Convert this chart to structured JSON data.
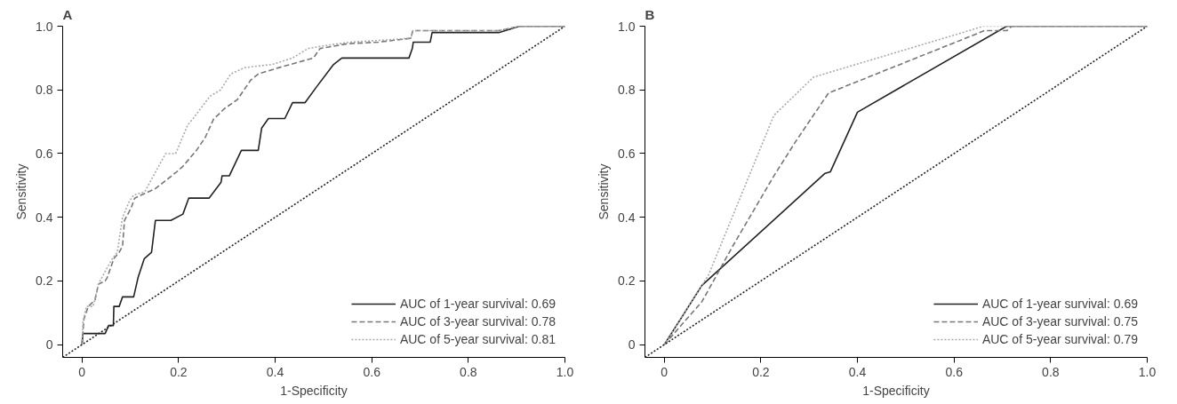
{
  "chart_data": [
    {
      "type": "line",
      "title": "A",
      "xlabel": "1-Specificity",
      "ylabel": "Sensitivity",
      "xlim": [
        -0.04,
        1.0
      ],
      "ylim": [
        -0.04,
        1.0
      ],
      "xticks": [
        0,
        0.2,
        0.4,
        0.6,
        0.8,
        {
          "value": 1.0,
          "label": "1.0"
        }
      ],
      "yticks": [
        0,
        0.2,
        0.4,
        0.6,
        0.8,
        {
          "value": 1.0,
          "label": "1.0"
        }
      ],
      "grid": false,
      "legend": "bottom right",
      "marker": "none",
      "series": [
        {
          "name": "AUC of 1-year survival: 0.69",
          "color": "#222222",
          "line_style": "solid",
          "x": [
            0,
            0.002,
            0.048,
            0.055,
            0.065,
            0.066,
            0.077,
            0.084,
            0.107,
            0.116,
            0.129,
            0.144,
            0.152,
            0.184,
            0.209,
            0.221,
            0.263,
            0.288,
            0.29,
            0.305,
            0.33,
            0.365,
            0.372,
            0.386,
            0.42,
            0.436,
            0.462,
            0.486,
            0.521,
            0.538,
            0.677,
            0.684,
            0.686,
            0.721,
            0.725,
            0.863,
            0.906,
            1.0
          ],
          "values": [
            0,
            0.035,
            0.035,
            0.06,
            0.06,
            0.12,
            0.12,
            0.15,
            0.15,
            0.21,
            0.27,
            0.29,
            0.39,
            0.39,
            0.41,
            0.46,
            0.46,
            0.51,
            0.53,
            0.53,
            0.61,
            0.61,
            0.68,
            0.71,
            0.71,
            0.76,
            0.76,
            0.81,
            0.88,
            0.9,
            0.9,
            0.93,
            0.95,
            0.95,
            0.98,
            0.98,
            1.0,
            1.0
          ]
        },
        {
          "name": "AUC of 3-year survival: 0.78",
          "color": "#777777",
          "line_style": "dashed",
          "x": [
            0,
            0.004,
            0.013,
            0.027,
            0.034,
            0.048,
            0.052,
            0.066,
            0.077,
            0.084,
            0.088,
            0.102,
            0.109,
            0.123,
            0.152,
            0.194,
            0.209,
            0.237,
            0.255,
            0.273,
            0.281,
            0.294,
            0.322,
            0.349,
            0.365,
            0.408,
            0.479,
            0.493,
            0.55,
            0.614,
            0.681,
            0.685,
            0.863,
            0.906,
            1.0
          ],
          "values": [
            0,
            0.08,
            0.12,
            0.14,
            0.19,
            0.2,
            0.21,
            0.27,
            0.29,
            0.31,
            0.39,
            0.43,
            0.46,
            0.47,
            0.49,
            0.54,
            0.56,
            0.61,
            0.65,
            0.71,
            0.72,
            0.74,
            0.77,
            0.83,
            0.85,
            0.87,
            0.9,
            0.93,
            0.945,
            0.95,
            0.962,
            0.986,
            0.986,
            1.0,
            1.0
          ]
        },
        {
          "name": "AUC of 5-year survival: 0.81",
          "color": "#aaaaaa",
          "line_style": "dotted",
          "x": [
            0,
            0.002,
            0.009,
            0.023,
            0.034,
            0.048,
            0.063,
            0.073,
            0.084,
            0.098,
            0.107,
            0.13,
            0.155,
            0.173,
            0.194,
            0.219,
            0.23,
            0.265,
            0.287,
            0.308,
            0.337,
            0.394,
            0.436,
            0.468,
            0.507,
            0.557,
            0.681,
            0.685,
            0.863,
            0.906,
            1.0
          ],
          "values": [
            0,
            0.07,
            0.12,
            0.12,
            0.19,
            0.23,
            0.27,
            0.29,
            0.4,
            0.45,
            0.47,
            0.48,
            0.55,
            0.6,
            0.6,
            0.69,
            0.71,
            0.78,
            0.8,
            0.85,
            0.87,
            0.88,
            0.9,
            0.93,
            0.94,
            0.95,
            0.962,
            0.986,
            0.986,
            1.0,
            1.0
          ]
        },
        {
          "color": "#222222",
          "line_style": "dotted",
          "x": [
            -0.04,
            1.0
          ],
          "values": [
            -0.04,
            1.0
          ]
        }
      ]
    },
    {
      "type": "line",
      "title": "B",
      "xlabel": "1-Specificity",
      "ylabel": "Sensitivity",
      "xlim": [
        -0.04,
        1.0
      ],
      "ylim": [
        -0.04,
        1.0
      ],
      "xticks": [
        0,
        0.2,
        0.4,
        0.6,
        0.8,
        {
          "value": 1.0,
          "label": "1.0"
        }
      ],
      "yticks": [
        0,
        0.2,
        0.4,
        0.6,
        0.8,
        {
          "value": 1.0,
          "label": "1.0"
        }
      ],
      "grid": false,
      "legend": "bottom right",
      "marker": "none",
      "series": [
        {
          "name": "AUC of 1-year survival: 0.69",
          "color": "#222222",
          "line_style": "solid",
          "x": [
            0,
            0.078,
            0.333,
            0.344,
            0.4,
            0.709,
            1.0
          ],
          "values": [
            0,
            0.186,
            0.538,
            0.543,
            0.73,
            1.0,
            1.0
          ]
        },
        {
          "name": "AUC of 3-year survival: 0.75",
          "color": "#777777",
          "line_style": "dashed",
          "x": [
            0,
            0.078,
            0.142,
            0.227,
            0.273,
            0.34,
            0.663,
            0.709,
            0.72,
            1.0
          ],
          "values": [
            0,
            0.135,
            0.31,
            0.53,
            0.64,
            0.79,
            0.986,
            0.986,
            1.0,
            1.0
          ]
        },
        {
          "name": "AUC of 5-year survival: 0.79",
          "color": "#aaaaaa",
          "line_style": "dotted",
          "x": [
            0,
            0.092,
            0.227,
            0.309,
            0.631,
            0.66,
            1.0
          ],
          "values": [
            0,
            0.22,
            0.72,
            0.84,
            0.986,
            1.0,
            1.0
          ]
        },
        {
          "color": "#222222",
          "line_style": "dotted",
          "x": [
            -0.04,
            1.0
          ],
          "values": [
            -0.04,
            1.0
          ]
        }
      ]
    }
  ]
}
